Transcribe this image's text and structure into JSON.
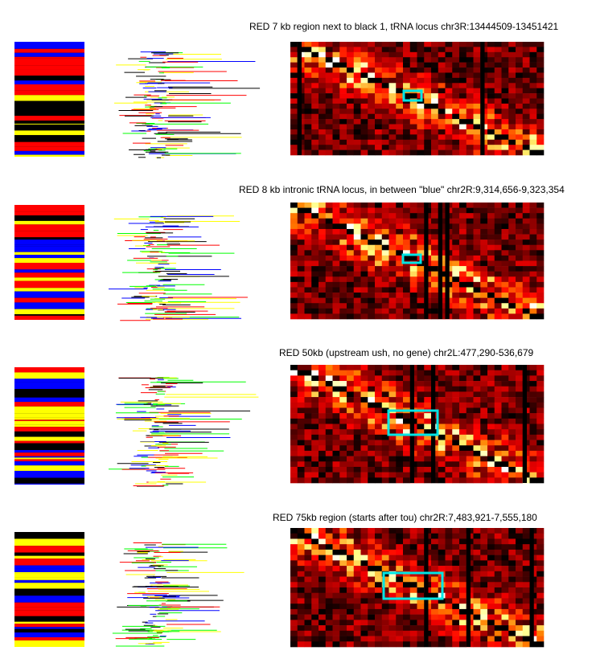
{
  "panels": [
    {
      "title": "RED 7 kb region next to black 1, tRNA locus chr3R:13444509-13451421"
    },
    {
      "title": "RED 8 kb intronic tRNA locus, in between \"blue\" chr2R:9,314,656-9,323,354"
    },
    {
      "title": "RED 50kb (upstream ush, no gene) chr2L:477,290-536,679"
    },
    {
      "title": "RED 75kb  region (starts after tou) chr2R:7,483,921-7,555,180"
    }
  ]
}
